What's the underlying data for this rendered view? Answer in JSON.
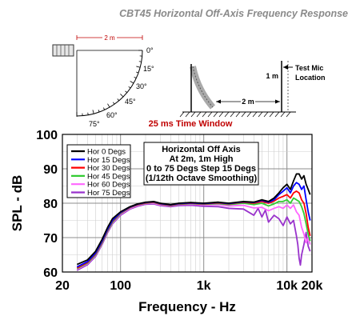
{
  "title": "CBT45 Horizontal Off-Axis Frequency Response",
  "top_diagram": {
    "distance_label": "2 m",
    "angle_labels": [
      "0°",
      "15°",
      "30°",
      "45°",
      "60°",
      "75°"
    ]
  },
  "side_diagram": {
    "height_label": "1 m",
    "distance_label": "2 m",
    "mic_label_line1": "Test Mic",
    "mic_label_line2": "Location"
  },
  "time_window_label": "25 ms Time Window",
  "chart_data": {
    "type": "line",
    "xlabel": "Frequency - Hz",
    "ylabel": "SPL - dB",
    "xscale": "log",
    "xlim": [
      20,
      20000
    ],
    "ylim": [
      60,
      100
    ],
    "x_ticks": [
      20,
      100,
      1000,
      10000,
      20000
    ],
    "x_tick_labels": [
      "20",
      "100",
      "1k",
      "10k",
      "20k"
    ],
    "y_ticks": [
      60,
      70,
      80,
      90,
      100
    ],
    "y_tick_labels": [
      "60",
      "70",
      "80",
      "90",
      "100"
    ],
    "grid": true,
    "legend_position": "top-left",
    "annotation": [
      "Horizontal Off Axis",
      "At 2m, 1m High",
      "0 to 75 Degs Step 15 Degs",
      "(1/12th Octave Smoothing)"
    ],
    "series": [
      {
        "name": "Hor  0 Degs",
        "color": "#000000",
        "points": [
          [
            30,
            62.2
          ],
          [
            40,
            63.5
          ],
          [
            50,
            66.0
          ],
          [
            60,
            69.5
          ],
          [
            70,
            73.0
          ],
          [
            80,
            75.5
          ],
          [
            100,
            77.5
          ],
          [
            130,
            79.0
          ],
          [
            160,
            79.8
          ],
          [
            200,
            80.3
          ],
          [
            250,
            80.5
          ],
          [
            300,
            80.0
          ],
          [
            400,
            79.6
          ],
          [
            500,
            80.0
          ],
          [
            700,
            80.2
          ],
          [
            1000,
            80.0
          ],
          [
            1500,
            80.3
          ],
          [
            2000,
            80.0
          ],
          [
            3000,
            80.5
          ],
          [
            4000,
            80.3
          ],
          [
            5000,
            81.0
          ],
          [
            6000,
            80.5
          ],
          [
            7000,
            81.5
          ],
          [
            8000,
            83.0
          ],
          [
            9000,
            84.5
          ],
          [
            10000,
            85.5
          ],
          [
            11000,
            84.0
          ],
          [
            12000,
            86.5
          ],
          [
            13000,
            88.5
          ],
          [
            14000,
            88.5
          ],
          [
            15000,
            87.0
          ],
          [
            16000,
            88.0
          ],
          [
            17000,
            85.5
          ],
          [
            18000,
            84.0
          ],
          [
            19000,
            82.5
          ]
        ]
      },
      {
        "name": "Hor 15 Degs",
        "color": "#0000ff",
        "points": [
          [
            30,
            61.5
          ],
          [
            40,
            63.0
          ],
          [
            50,
            65.5
          ],
          [
            60,
            69.0
          ],
          [
            70,
            72.5
          ],
          [
            80,
            75.0
          ],
          [
            100,
            77.3
          ],
          [
            130,
            78.9
          ],
          [
            160,
            79.7
          ],
          [
            200,
            80.2
          ],
          [
            250,
            80.4
          ],
          [
            300,
            79.9
          ],
          [
            400,
            79.5
          ],
          [
            500,
            79.9
          ],
          [
            700,
            80.1
          ],
          [
            1000,
            79.9
          ],
          [
            1500,
            80.2
          ],
          [
            2000,
            79.9
          ],
          [
            3000,
            80.4
          ],
          [
            4000,
            80.2
          ],
          [
            5000,
            80.8
          ],
          [
            6000,
            80.3
          ],
          [
            7000,
            81.0
          ],
          [
            8000,
            82.5
          ],
          [
            9000,
            83.5
          ],
          [
            10000,
            84.5
          ],
          [
            11000,
            83.0
          ],
          [
            12000,
            85.0
          ],
          [
            13000,
            86.0
          ],
          [
            14000,
            85.5
          ],
          [
            15000,
            84.0
          ],
          [
            16000,
            85.0
          ],
          [
            17000,
            81.0
          ],
          [
            18000,
            77.5
          ],
          [
            19000,
            75.0
          ]
        ]
      },
      {
        "name": "Hor 30 Degs",
        "color": "#ff0000",
        "points": [
          [
            30,
            61.2
          ],
          [
            40,
            62.8
          ],
          [
            50,
            65.3
          ],
          [
            60,
            68.8
          ],
          [
            70,
            72.3
          ],
          [
            80,
            74.8
          ],
          [
            100,
            77.2
          ],
          [
            130,
            78.8
          ],
          [
            160,
            79.6
          ],
          [
            200,
            80.1
          ],
          [
            250,
            80.3
          ],
          [
            300,
            79.8
          ],
          [
            400,
            79.4
          ],
          [
            500,
            79.8
          ],
          [
            700,
            80.0
          ],
          [
            1000,
            79.8
          ],
          [
            1500,
            80.1
          ],
          [
            2000,
            79.8
          ],
          [
            3000,
            80.3
          ],
          [
            4000,
            80.0
          ],
          [
            5000,
            80.5
          ],
          [
            6000,
            80.0
          ],
          [
            7000,
            80.6
          ],
          [
            8000,
            81.5
          ],
          [
            9000,
            82.0
          ],
          [
            10000,
            82.5
          ],
          [
            11000,
            81.5
          ],
          [
            12000,
            83.0
          ],
          [
            13000,
            83.5
          ],
          [
            14000,
            83.0
          ],
          [
            15000,
            81.0
          ],
          [
            16000,
            80.0
          ],
          [
            17000,
            77.0
          ],
          [
            18000,
            73.0
          ],
          [
            19000,
            70.5
          ]
        ]
      },
      {
        "name": "Hor 45 Degs",
        "color": "#33cc33",
        "points": [
          [
            30,
            61.0
          ],
          [
            40,
            62.6
          ],
          [
            50,
            65.0
          ],
          [
            60,
            68.5
          ],
          [
            70,
            72.0
          ],
          [
            80,
            74.5
          ],
          [
            100,
            77.0
          ],
          [
            130,
            78.7
          ],
          [
            160,
            79.5
          ],
          [
            200,
            80.0
          ],
          [
            250,
            80.2
          ],
          [
            300,
            79.7
          ],
          [
            400,
            79.3
          ],
          [
            500,
            79.7
          ],
          [
            700,
            79.9
          ],
          [
            1000,
            79.7
          ],
          [
            1500,
            79.9
          ],
          [
            2000,
            79.6
          ],
          [
            3000,
            80.0
          ],
          [
            4000,
            79.6
          ],
          [
            5000,
            80.0
          ],
          [
            6000,
            79.2
          ],
          [
            7000,
            79.8
          ],
          [
            8000,
            80.5
          ],
          [
            9000,
            80.5
          ],
          [
            10000,
            81.0
          ],
          [
            11000,
            80.0
          ],
          [
            12000,
            81.5
          ],
          [
            13000,
            81.0
          ],
          [
            14000,
            80.5
          ],
          [
            15000,
            79.0
          ],
          [
            16000,
            77.0
          ],
          [
            17000,
            74.0
          ],
          [
            18000,
            71.0
          ],
          [
            19000,
            69.0
          ]
        ]
      },
      {
        "name": "Hor 60 Degs",
        "color": "#ff66ff",
        "points": [
          [
            30,
            60.8
          ],
          [
            40,
            62.4
          ],
          [
            50,
            64.8
          ],
          [
            60,
            68.3
          ],
          [
            70,
            71.8
          ],
          [
            80,
            74.3
          ],
          [
            100,
            76.8
          ],
          [
            130,
            78.5
          ],
          [
            160,
            79.3
          ],
          [
            200,
            79.9
          ],
          [
            250,
            80.0
          ],
          [
            300,
            79.5
          ],
          [
            400,
            79.2
          ],
          [
            500,
            79.6
          ],
          [
            700,
            79.7
          ],
          [
            1000,
            79.5
          ],
          [
            1500,
            79.6
          ],
          [
            2000,
            79.2
          ],
          [
            3000,
            79.4
          ],
          [
            4000,
            78.6
          ],
          [
            5000,
            78.8
          ],
          [
            6000,
            77.8
          ],
          [
            7000,
            78.5
          ],
          [
            8000,
            79.0
          ],
          [
            9000,
            78.5
          ],
          [
            10000,
            79.5
          ],
          [
            11000,
            78.5
          ],
          [
            12000,
            79.5
          ],
          [
            13000,
            77.5
          ],
          [
            14000,
            76.5
          ],
          [
            15000,
            73.0
          ],
          [
            16000,
            71.0
          ],
          [
            17000,
            68.5
          ],
          [
            18000,
            70.0
          ],
          [
            19000,
            68.0
          ]
        ]
      },
      {
        "name": "Hor 75 Degs",
        "color": "#9933cc",
        "points": [
          [
            30,
            60.5
          ],
          [
            40,
            62.1
          ],
          [
            50,
            64.5
          ],
          [
            60,
            68.0
          ],
          [
            70,
            71.5
          ],
          [
            80,
            74.0
          ],
          [
            100,
            76.5
          ],
          [
            130,
            78.3
          ],
          [
            160,
            79.1
          ],
          [
            200,
            79.7
          ],
          [
            250,
            79.8
          ],
          [
            300,
            79.3
          ],
          [
            400,
            79.0
          ],
          [
            500,
            79.3
          ],
          [
            700,
            79.4
          ],
          [
            1000,
            79.1
          ],
          [
            1500,
            79.0
          ],
          [
            2000,
            78.5
          ],
          [
            3000,
            78.3
          ],
          [
            4000,
            76.5
          ],
          [
            4500,
            78.5
          ],
          [
            5000,
            76.0
          ],
          [
            5500,
            78.0
          ],
          [
            6000,
            74.5
          ],
          [
            7000,
            76.5
          ],
          [
            8000,
            75.5
          ],
          [
            9000,
            73.5
          ],
          [
            10000,
            76.0
          ],
          [
            11000,
            74.0
          ],
          [
            12000,
            75.0
          ],
          [
            13000,
            70.5
          ],
          [
            13500,
            68.0
          ],
          [
            14000,
            64.0
          ],
          [
            14500,
            62.0
          ],
          [
            15000,
            65.0
          ],
          [
            16000,
            68.0
          ],
          [
            17000,
            71.5
          ],
          [
            18000,
            67.5
          ],
          [
            19000,
            66.0
          ]
        ]
      }
    ]
  }
}
